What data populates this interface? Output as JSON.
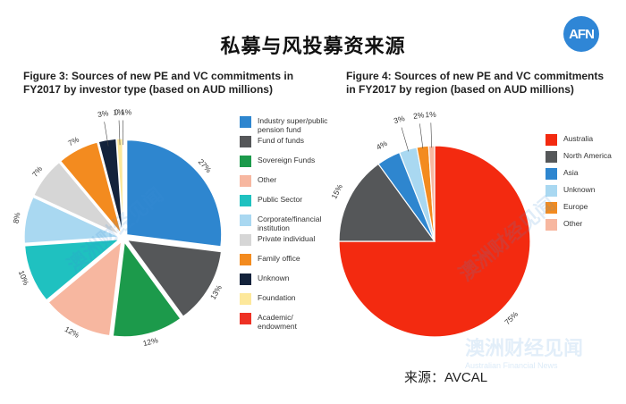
{
  "page": {
    "title": "私募与风投募资来源",
    "logo_text": "AFN",
    "source": "来源：AVCAL",
    "watermark_text": "澳洲财经见闻",
    "watermark_subtext": "Australian Financial News"
  },
  "chart_data": [
    {
      "type": "pie",
      "title_lines": [
        "Figure 3: Sources of new PE and VC commitments in",
        "FY2017 by investor type (based on AUD millions)"
      ],
      "slices": [
        {
          "label": "Industry super/public pension fund",
          "value": 27,
          "value_label": "27%",
          "color": "#2e86cf"
        },
        {
          "label": "Fund of funds",
          "value": 13,
          "value_label": "13%",
          "color": "#555759"
        },
        {
          "label": "Sovereign Funds",
          "value": 12,
          "value_label": "12%",
          "color": "#1c9a4b"
        },
        {
          "label": "Other",
          "value": 12,
          "value_label": "12%",
          "color": "#f7b7a0"
        },
        {
          "label": "Public Sector",
          "value": 10,
          "value_label": "10%",
          "color": "#1fc1c0"
        },
        {
          "label": "Corporate/financial institution",
          "value": 8,
          "value_label": "8%",
          "color": "#a9d8f1"
        },
        {
          "label": "Private individual",
          "value": 7,
          "value_label": "7%",
          "color": "#d6d6d6"
        },
        {
          "label": "Family office",
          "value": 7,
          "value_label": "7%",
          "color": "#f38b1f"
        },
        {
          "label": "Unknown",
          "value": 3,
          "value_label": "3%",
          "color": "#13223b"
        },
        {
          "label": "Foundation",
          "value": 1,
          "value_label": "1%",
          "color": "#fde89b"
        },
        {
          "label": "Academic/ endowment",
          "value": 0.1,
          "value_label": "0.1%",
          "color": "#ee3124"
        }
      ]
    },
    {
      "type": "pie",
      "title_lines": [
        "Figure 4: Sources of new PE and VC commitments",
        "in FY2017 by region (based on AUD millions)"
      ],
      "slices": [
        {
          "label": "Australia",
          "value": 75,
          "value_label": "75%",
          "color": "#f32a10"
        },
        {
          "label": "North America",
          "value": 15,
          "value_label": "15%",
          "color": "#555759"
        },
        {
          "label": "Asia",
          "value": 4,
          "value_label": "4%",
          "color": "#2e86cf"
        },
        {
          "label": "Unknown",
          "value": 3,
          "value_label": "3%",
          "color": "#a9d8f1"
        },
        {
          "label": "Europe",
          "value": 2,
          "value_label": "2%",
          "color": "#f38b1f"
        },
        {
          "label": "Other",
          "value": 1,
          "value_label": "1%",
          "color": "#f7b7a0"
        }
      ]
    }
  ]
}
